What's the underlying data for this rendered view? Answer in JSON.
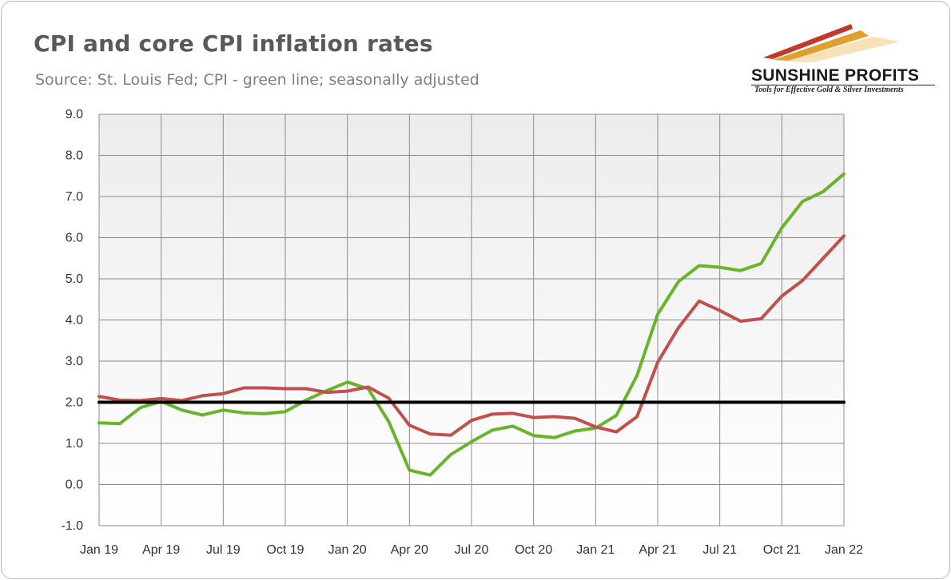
{
  "header": {
    "title": "CPI and core CPI inflation rates",
    "subtitle": "Source: St. Louis Fed; CPI - green line; seasonally adjusted"
  },
  "logo": {
    "name": "SUNSHINE PROFITS",
    "tagline": "Tools for Effective Gold & Silver Investments",
    "colors": [
      "#c0392b",
      "#e0a030",
      "#f0c27b"
    ]
  },
  "chart_data": {
    "type": "line",
    "x": [
      "Jan 19",
      "Feb 19",
      "Mar 19",
      "Apr 19",
      "May 19",
      "Jun 19",
      "Jul 19",
      "Aug 19",
      "Sep 19",
      "Oct 19",
      "Nov 19",
      "Dec 19",
      "Jan 20",
      "Feb 20",
      "Mar 20",
      "Apr 20",
      "May 20",
      "Jun 20",
      "Jul 20",
      "Aug 20",
      "Sep 20",
      "Oct 20",
      "Nov 20",
      "Dec 20",
      "Jan 21",
      "Feb 21",
      "Mar 21",
      "Apr 21",
      "May 21",
      "Jun 21",
      "Jul 21",
      "Aug 21",
      "Sep 21",
      "Oct 21",
      "Nov 21",
      "Dec 21",
      "Jan 22"
    ],
    "x_tick_labels": [
      "Jan 19",
      "Apr 19",
      "Jul 19",
      "Oct 19",
      "Jan 20",
      "Apr 20",
      "Jul 20",
      "Oct 20",
      "Jan 21",
      "Apr 21",
      "Jul 21",
      "Oct 21",
      "Jan 22"
    ],
    "series": [
      {
        "color": "#6ab42d",
        "values": [
          1.5,
          1.48,
          1.87,
          2.02,
          1.81,
          1.69,
          1.81,
          1.74,
          1.72,
          1.77,
          2.05,
          2.28,
          2.49,
          2.33,
          1.53,
          0.35,
          0.23,
          0.73,
          1.04,
          1.32,
          1.42,
          1.19,
          1.14,
          1.3,
          1.37,
          1.68,
          2.65,
          4.14,
          4.93,
          5.32,
          5.28,
          5.2,
          5.37,
          6.24,
          6.88,
          7.12,
          7.55
        ]
      },
      {
        "color": "#c0504d",
        "values": [
          2.14,
          2.05,
          2.04,
          2.09,
          2.04,
          2.16,
          2.21,
          2.35,
          2.35,
          2.33,
          2.33,
          2.24,
          2.27,
          2.37,
          2.1,
          1.44,
          1.23,
          1.2,
          1.56,
          1.71,
          1.73,
          1.63,
          1.65,
          1.61,
          1.4,
          1.28,
          1.65,
          2.97,
          3.81,
          4.46,
          4.23,
          3.97,
          4.03,
          4.58,
          4.96,
          5.5,
          6.04
        ]
      },
      {
        "color": "#000000",
        "values": [
          2.0,
          2.0,
          2.0,
          2.0,
          2.0,
          2.0,
          2.0,
          2.0,
          2.0,
          2.0,
          2.0,
          2.0,
          2.0,
          2.0,
          2.0,
          2.0,
          2.0,
          2.0,
          2.0,
          2.0,
          2.0,
          2.0,
          2.0,
          2.0,
          2.0,
          2.0,
          2.0,
          2.0,
          2.0,
          2.0,
          2.0,
          2.0,
          2.0,
          2.0,
          2.0,
          2.0,
          2.0
        ]
      }
    ],
    "ylim": [
      -1.0,
      9.0
    ],
    "y_ticks": [
      "9.0",
      "8.0",
      "7.0",
      "6.0",
      "5.0",
      "4.0",
      "3.0",
      "2.0",
      "1.0",
      "0.0",
      "-1.0"
    ],
    "grid": true,
    "legend": "none"
  }
}
